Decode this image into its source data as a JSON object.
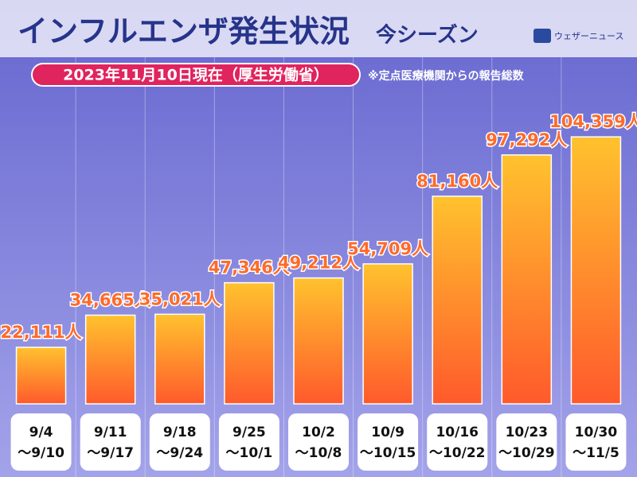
{
  "chart_data": {
    "type": "bar",
    "title": "インフルエンザ発生状況",
    "subtitle": "今シーズン",
    "date_banner": "2023年11月10日現在（厚生労働省）",
    "note": "※定点医療機関からの報告総数",
    "brand": "ウェザーニュース",
    "categories": [
      [
        "9/4",
        "〜9/10"
      ],
      [
        "9/11",
        "〜9/17"
      ],
      [
        "9/18",
        "〜9/24"
      ],
      [
        "9/25",
        "〜10/1"
      ],
      [
        "10/2",
        "〜10/8"
      ],
      [
        "10/9",
        "〜10/15"
      ],
      [
        "10/16",
        "〜10/22"
      ],
      [
        "10/23",
        "〜10/29"
      ],
      [
        "10/30",
        "〜11/5"
      ]
    ],
    "values": [
      22111,
      34665,
      35021,
      47346,
      49212,
      54709,
      81160,
      97292,
      104359
    ],
    "value_labels": [
      "22,111人",
      "34,665人",
      "35,021人",
      "47,346人",
      "49,212人",
      "54,709人",
      "81,160人",
      "97,292人",
      "104,359人"
    ],
    "color": "#ff6a2a",
    "ylim": [
      0,
      110000
    ]
  }
}
